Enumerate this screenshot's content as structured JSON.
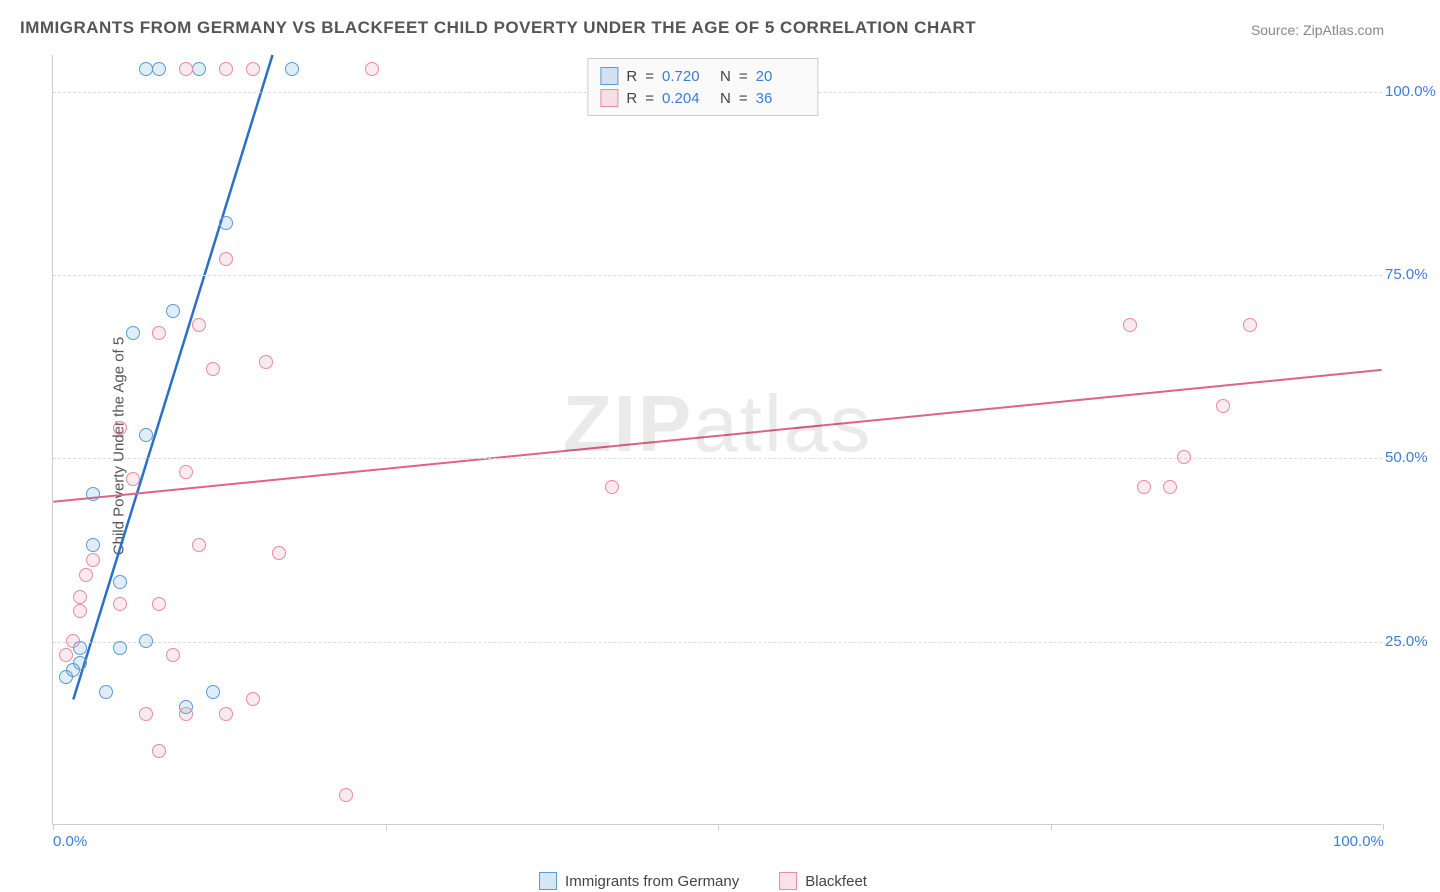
{
  "title": "IMMIGRANTS FROM GERMANY VS BLACKFEET CHILD POVERTY UNDER THE AGE OF 5 CORRELATION CHART",
  "source_label": "Source: ZipAtlas.com",
  "y_axis_label": "Child Poverty Under the Age of 5",
  "watermark_prefix": "ZIP",
  "watermark_suffix": "atlas",
  "chart": {
    "type": "scatter",
    "xlim": [
      0,
      100
    ],
    "ylim": [
      0,
      105
    ],
    "x_tick_positions": [
      0,
      50,
      100
    ],
    "x_tick_labels": [
      "0.0%",
      "",
      "100.0%"
    ],
    "y_ticks": [
      25,
      50,
      75,
      100
    ],
    "y_tick_labels": [
      "25.0%",
      "50.0%",
      "75.0%",
      "100.0%"
    ],
    "background_color": "#ffffff",
    "grid_color": "#dddddd",
    "axis_color": "#cccccc",
    "marker_radius": 7,
    "marker_stroke_width": 1.5,
    "marker_fill_opacity": 0.18,
    "series": [
      {
        "name": "Immigrants from Germany",
        "color": "#5a9bd5",
        "line_color": "#2c6fc9",
        "line_width": 2.5,
        "r": 0.72,
        "n": 20,
        "trend": {
          "x1": 1.5,
          "y1": 17,
          "x2": 16.5,
          "y2": 105
        },
        "points": [
          {
            "x": 1,
            "y": 20
          },
          {
            "x": 1.5,
            "y": 21
          },
          {
            "x": 2,
            "y": 22
          },
          {
            "x": 2,
            "y": 24
          },
          {
            "x": 5,
            "y": 24
          },
          {
            "x": 4,
            "y": 18
          },
          {
            "x": 7,
            "y": 25
          },
          {
            "x": 5,
            "y": 33
          },
          {
            "x": 3,
            "y": 38
          },
          {
            "x": 7,
            "y": 53
          },
          {
            "x": 6,
            "y": 67
          },
          {
            "x": 9,
            "y": 70
          },
          {
            "x": 13,
            "y": 82
          },
          {
            "x": 7,
            "y": 103
          },
          {
            "x": 8,
            "y": 103
          },
          {
            "x": 11,
            "y": 103
          },
          {
            "x": 18,
            "y": 103
          },
          {
            "x": 10,
            "y": 16
          },
          {
            "x": 3,
            "y": 45
          },
          {
            "x": 12,
            "y": 18
          }
        ]
      },
      {
        "name": "Blackfeet",
        "color": "#e88aa2",
        "line_color": "#e06287",
        "line_width": 2,
        "r": 0.204,
        "n": 36,
        "trend": {
          "x1": 0,
          "y1": 44,
          "x2": 100,
          "y2": 62
        },
        "points": [
          {
            "x": 1,
            "y": 23
          },
          {
            "x": 1.5,
            "y": 25
          },
          {
            "x": 2,
            "y": 29
          },
          {
            "x": 2,
            "y": 31
          },
          {
            "x": 2.5,
            "y": 34
          },
          {
            "x": 3,
            "y": 36
          },
          {
            "x": 5,
            "y": 30
          },
          {
            "x": 8,
            "y": 30
          },
          {
            "x": 9,
            "y": 23
          },
          {
            "x": 7,
            "y": 15
          },
          {
            "x": 10,
            "y": 15
          },
          {
            "x": 13,
            "y": 15
          },
          {
            "x": 8,
            "y": 10
          },
          {
            "x": 22,
            "y": 4
          },
          {
            "x": 15,
            "y": 17
          },
          {
            "x": 17,
            "y": 37
          },
          {
            "x": 11,
            "y": 38
          },
          {
            "x": 10,
            "y": 48
          },
          {
            "x": 5,
            "y": 54
          },
          {
            "x": 6,
            "y": 47
          },
          {
            "x": 12,
            "y": 62
          },
          {
            "x": 16,
            "y": 63
          },
          {
            "x": 8,
            "y": 67
          },
          {
            "x": 11,
            "y": 68
          },
          {
            "x": 13,
            "y": 77
          },
          {
            "x": 10,
            "y": 103
          },
          {
            "x": 13,
            "y": 103
          },
          {
            "x": 15,
            "y": 103
          },
          {
            "x": 24,
            "y": 103
          },
          {
            "x": 42,
            "y": 46
          },
          {
            "x": 81,
            "y": 68
          },
          {
            "x": 90,
            "y": 68
          },
          {
            "x": 85,
            "y": 50
          },
          {
            "x": 88,
            "y": 57
          },
          {
            "x": 82,
            "y": 46
          },
          {
            "x": 84,
            "y": 46
          }
        ]
      }
    ]
  },
  "legend_top": {
    "r_label": "R",
    "n_label": "N",
    "eq": "="
  },
  "r_value_blue": "0.720",
  "n_value_blue": "20",
  "r_value_pink": "0.204",
  "n_value_pink": "36",
  "series1_name": "Immigrants from Germany",
  "series2_name": "Blackfeet"
}
